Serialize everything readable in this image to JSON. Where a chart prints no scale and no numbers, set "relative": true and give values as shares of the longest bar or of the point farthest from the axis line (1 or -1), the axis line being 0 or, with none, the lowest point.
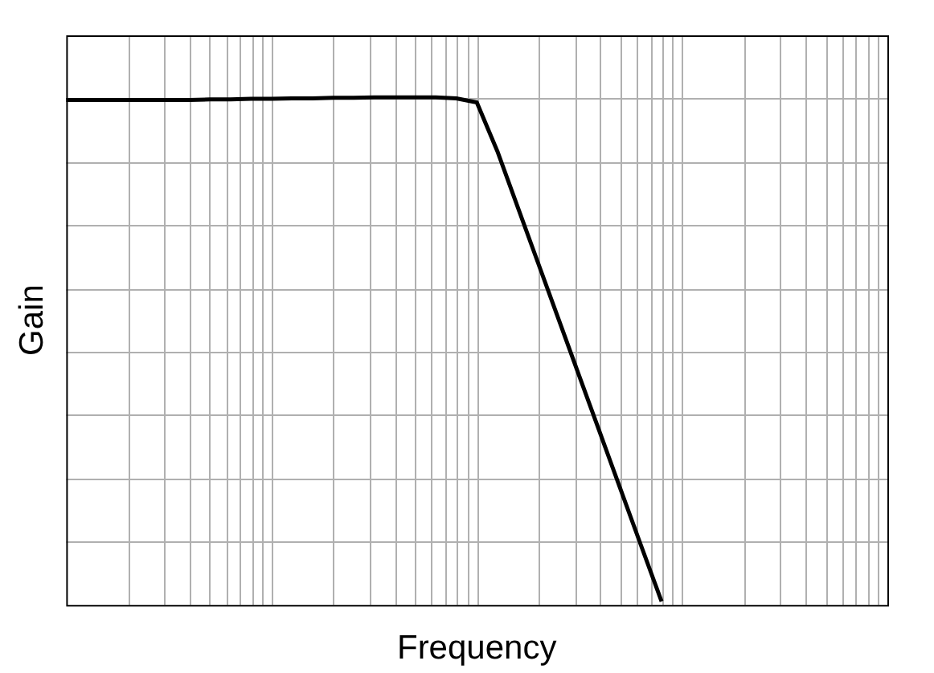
{
  "chart_data": {
    "type": "line",
    "relative": true,
    "xlabel": "Frequency",
    "ylabel": "Gain",
    "grid": true,
    "legend": false,
    "marker": "none",
    "line_style": "solid",
    "categories": [
      null,
      null,
      null,
      null,
      null,
      null,
      null,
      null,
      null,
      null,
      null,
      null,
      null,
      null,
      null,
      null,
      null,
      null,
      null,
      null,
      null,
      null,
      null,
      null,
      null,
      null,
      null,
      null,
      null,
      null,
      null,
      null,
      null,
      null,
      null,
      null,
      null,
      null,
      null,
      null,
      null
    ],
    "series": [
      {
        "color": "#000000",
        "values": [
          0.995,
          0.995,
          0.995,
          0.995,
          0.995,
          0.995,
          0.995,
          0.996,
          0.996,
          0.997,
          0.997,
          0.998,
          0.998,
          0.999,
          0.999,
          1,
          1,
          1,
          1,
          0.998,
          0.99,
          0.894,
          0.783,
          0.672,
          0.561,
          0.45,
          0.339,
          0.228,
          0.117,
          0.007,
          null,
          null,
          null,
          null,
          null,
          null,
          null,
          null,
          null,
          null,
          null
        ]
      }
    ]
  }
}
